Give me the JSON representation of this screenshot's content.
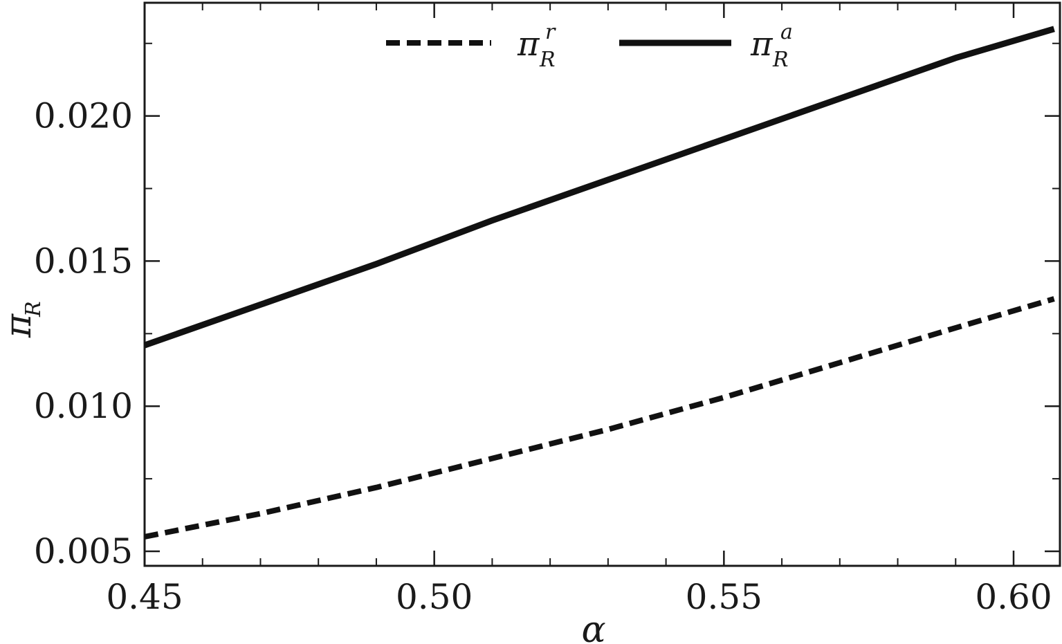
{
  "chart_data": {
    "type": "line",
    "title": "",
    "xlabel": "α",
    "ylabel": {
      "base": "π",
      "sub": "R"
    },
    "xlim": [
      0.45,
      0.608
    ],
    "ylim": [
      0.0045,
      0.0239
    ],
    "x_ticks": [
      0.45,
      0.5,
      0.55,
      0.6
    ],
    "x_tick_labels": [
      "0.45",
      "0.50",
      "0.55",
      "0.60"
    ],
    "x_minor_ticks": [
      0.46,
      0.47,
      0.48,
      0.49,
      0.51,
      0.52,
      0.53,
      0.54,
      0.56,
      0.57,
      0.58,
      0.59
    ],
    "y_ticks": [
      0.005,
      0.01,
      0.015,
      0.02
    ],
    "y_tick_labels": [
      "0.005",
      "0.010",
      "0.015",
      "0.020"
    ],
    "y_minor_ticks": [
      0.0075,
      0.0125,
      0.0175,
      0.0225
    ],
    "grid": false,
    "legend_position": "top-center",
    "series": [
      {
        "legend_base": "π",
        "legend_sub": "R",
        "legend_sup": "r",
        "style": "dashed",
        "color": "#111111",
        "x": [
          0.45,
          0.47,
          0.49,
          0.51,
          0.53,
          0.55,
          0.57,
          0.59,
          0.607
        ],
        "y": [
          0.0055,
          0.0063,
          0.0072,
          0.0082,
          0.0092,
          0.0103,
          0.0115,
          0.0127,
          0.0137
        ]
      },
      {
        "legend_base": "π",
        "legend_sub": "R",
        "legend_sup": "a",
        "style": "solid",
        "color": "#111111",
        "x": [
          0.45,
          0.47,
          0.49,
          0.51,
          0.53,
          0.55,
          0.57,
          0.59,
          0.607
        ],
        "y": [
          0.0121,
          0.0135,
          0.0149,
          0.0164,
          0.0178,
          0.0192,
          0.0206,
          0.022,
          0.023
        ]
      }
    ]
  }
}
